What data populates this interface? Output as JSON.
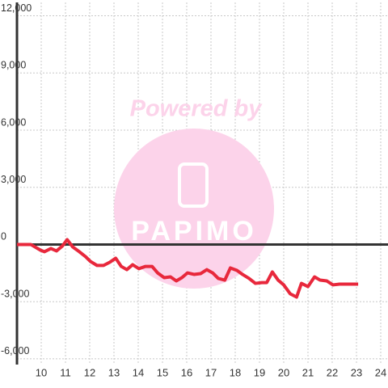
{
  "chart_data": {
    "type": "line",
    "watermark": "Powered by",
    "watermark_logo": "PAPIMO",
    "x": [
      9,
      9.57,
      9.97,
      10.13,
      10.4,
      10.63,
      10.87,
      11.07,
      11.3,
      11.53,
      11.83,
      12.03,
      12.3,
      12.57,
      12.83,
      13.07,
      13.3,
      13.53,
      13.77,
      14.03,
      14.3,
      14.57,
      14.8,
      15.07,
      15.33,
      15.57,
      15.8,
      16.03,
      16.3,
      16.57,
      16.83,
      17.07,
      17.3,
      17.57,
      17.8,
      18.07,
      18.3,
      18.57,
      18.83,
      19.1,
      19.3,
      19.53,
      19.77,
      20,
      20.27,
      20.53,
      20.73,
      21,
      21.27,
      21.5,
      21.77,
      22.03,
      22.3,
      23.07
    ],
    "series": [
      {
        "color": "#e8283c",
        "values": [
          0,
          0,
          -300,
          -380,
          -210,
          -340,
          -85,
          255,
          -130,
          -340,
          -640,
          -890,
          -1100,
          -1100,
          -930,
          -720,
          -1150,
          -1320,
          -1060,
          -1270,
          -1150,
          -1150,
          -1490,
          -1740,
          -1700,
          -1910,
          -1740,
          -1490,
          -1570,
          -1530,
          -1320,
          -1490,
          -1780,
          -1870,
          -1230,
          -1360,
          -1570,
          -1780,
          -2040,
          -2000,
          -2000,
          -1440,
          -1870,
          -2120,
          -2590,
          -2760,
          -2040,
          -2210,
          -1700,
          -1870,
          -1910,
          -2120,
          -2080,
          -2080
        ]
      }
    ],
    "xlim": [
      9,
      24.3
    ],
    "xticks": [
      10,
      11,
      12,
      13,
      14,
      15,
      16,
      17,
      18,
      19,
      20,
      21,
      22,
      23,
      24
    ],
    "ylim": [
      -6300,
      12700
    ],
    "yticks": [
      {
        "value": 12000,
        "label": "12,000"
      },
      {
        "value": 9000,
        "label": "9,000"
      },
      {
        "value": 6000,
        "label": "6,000"
      },
      {
        "value": 3000,
        "label": "3,000"
      },
      0,
      {
        "value": -3000,
        "label": "-3,000"
      },
      {
        "value": -6000,
        "label": "-6,000"
      }
    ],
    "grid": true
  }
}
